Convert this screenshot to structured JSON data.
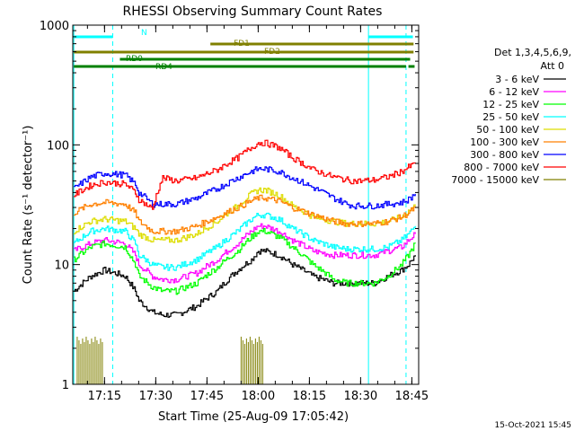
{
  "chart_data": {
    "type": "line",
    "title": "RHESSI Observing Summary Count Rates",
    "xlabel": "Start Time (25-Aug-09 17:05:42)",
    "ylabel": "Count Rate (s⁻¹ detector⁻¹)",
    "timestamp": "15-Oct-2021 15:45",
    "x_start_min": 1025.7,
    "x_end_min": 1127.0,
    "x_ticks": [
      "17:15",
      "17:30",
      "17:45",
      "18:00",
      "18:15",
      "18:30",
      "18:45"
    ],
    "x_tick_minutes": [
      1035,
      1050,
      1065,
      1080,
      1095,
      1110,
      1125
    ],
    "y_scale": "log",
    "ylim": [
      1,
      1000
    ],
    "y_ticks": [
      "1",
      "10",
      "100",
      "1000"
    ],
    "legend_header": [
      "Det 1,3,4,5,6,9,",
      "Att 0"
    ],
    "legend_position": "right",
    "time_minutes": [
      1026,
      1031,
      1035,
      1041,
      1044,
      1045,
      1049,
      1052,
      1056,
      1062,
      1068,
      1074,
      1078,
      1080,
      1082,
      1086,
      1090,
      1096,
      1102,
      1106,
      1108,
      1110,
      1114,
      1118,
      1122,
      1124,
      1126
    ],
    "series": [
      {
        "name": "3 - 6 keV",
        "color": "#000000",
        "values": [
          6,
          8,
          9,
          8,
          6,
          5,
          4,
          3.8,
          3.8,
          4.5,
          6,
          9,
          11,
          13,
          13,
          12,
          10,
          8,
          7,
          7,
          7,
          7,
          7,
          8,
          9,
          10,
          12
        ]
      },
      {
        "name": "6 - 12 keV",
        "color": "#ff00ff",
        "values": [
          13,
          15,
          16,
          15,
          12,
          10,
          8,
          7.5,
          7.5,
          8.5,
          11,
          15,
          19,
          21,
          21,
          19,
          16,
          13,
          12,
          12,
          12,
          12,
          12,
          13,
          14,
          16,
          18
        ]
      },
      {
        "name": "12 - 25 keV",
        "color": "#00ff00",
        "values": [
          11,
          14,
          15,
          14,
          10,
          8,
          6.5,
          6,
          6,
          7,
          9.5,
          13,
          17,
          19,
          19,
          17,
          14,
          10,
          7.5,
          7,
          7,
          7,
          7,
          8,
          10,
          12,
          15
        ]
      },
      {
        "name": "25 - 50 keV",
        "color": "#00ffff",
        "values": [
          15,
          19,
          20,
          19,
          15,
          12,
          10,
          9.5,
          9.5,
          11,
          14,
          19,
          24,
          26,
          26,
          24,
          20,
          16,
          14,
          13.5,
          13.5,
          13.5,
          13.5,
          14,
          16,
          18,
          21
        ]
      },
      {
        "name": "50 - 100 keV",
        "color": "#dddd00",
        "values": [
          19,
          23,
          24,
          23,
          20,
          18,
          16,
          16,
          16,
          18,
          23,
          31,
          39,
          42,
          42,
          38,
          31,
          25,
          23,
          22,
          22,
          22,
          22,
          23,
          25,
          28,
          31
        ]
      },
      {
        "name": "100 - 300 keV",
        "color": "#ff8000",
        "values": [
          27,
          32,
          33,
          32,
          27,
          23,
          19,
          19,
          19,
          21,
          25,
          30,
          34,
          36,
          36,
          34,
          30,
          26,
          23,
          22,
          22,
          22,
          22,
          23,
          25,
          27,
          30
        ]
      },
      {
        "name": "300 - 800 keV",
        "color": "#0000ff",
        "values": [
          43,
          54,
          58,
          56,
          47,
          40,
          32,
          32,
          32,
          36,
          43,
          53,
          60,
          63,
          63,
          60,
          53,
          44,
          36,
          32,
          31,
          31,
          31,
          32,
          33,
          35,
          39
        ]
      },
      {
        "name": "800 - 7000 keV",
        "color": "#ff0000",
        "values": [
          38,
          46,
          49,
          47,
          40,
          35,
          29,
          53,
          50,
          53,
          62,
          78,
          95,
          104,
          104,
          95,
          78,
          62,
          54,
          51,
          50,
          50,
          51,
          54,
          60,
          65,
          70
        ]
      },
      {
        "name": "7000 - 15000 keV",
        "color": "#808000",
        "values": []
      }
    ],
    "flag_bars": [
      {
        "name": "N",
        "color": "#00ffff",
        "start_min": 1026,
        "end_min": 1037.4
      },
      {
        "name": "",
        "color": "#00ffff",
        "start_min": 1112.3,
        "end_min": 1125.3
      },
      {
        "name": "FD1",
        "color": "#808000",
        "start_min": 1066,
        "end_min": 1125.5
      },
      {
        "name": "FD2",
        "color": "#808000",
        "start_min": 1026,
        "end_min": 1125.5
      },
      {
        "name": "RD0",
        "color": "#008000",
        "start_min": 1039.5,
        "end_min": 1124.5
      },
      {
        "name": "RD4",
        "color": "#008000",
        "start_min": 1026,
        "end_min": 1123.3
      },
      {
        "name": "",
        "color": "#008000",
        "start_min": 1124.0,
        "end_min": 1125.8
      }
    ],
    "event_lines": [
      {
        "kind": "solid",
        "color": "#00ffff",
        "minutes": [
          1026.0,
          1112.3
        ]
      },
      {
        "kind": "dashed",
        "color": "#00ffff",
        "minutes": [
          1037.4,
          1123.3
        ]
      }
    ],
    "high_energy_bursts": [
      {
        "color": "#808000",
        "start_min": 1027,
        "end_min": 1034.5,
        "level": 2
      },
      {
        "color": "#808000",
        "start_min": 1075,
        "end_min": 1081.5,
        "level": 2
      }
    ]
  }
}
